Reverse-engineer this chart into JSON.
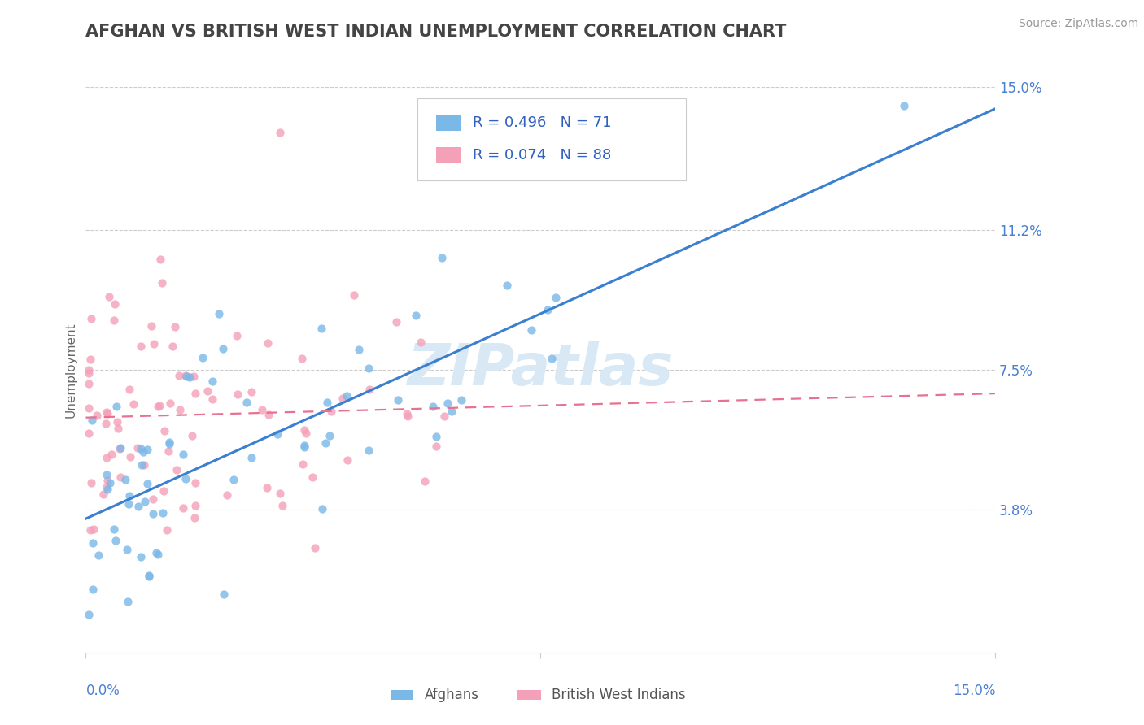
{
  "title": "AFGHAN VS BRITISH WEST INDIAN UNEMPLOYMENT CORRELATION CHART",
  "source": "Source: ZipAtlas.com",
  "xmin": 0.0,
  "xmax": 15.0,
  "ymin": 0.0,
  "ymax": 15.0,
  "afghan_R": 0.496,
  "afghan_N": 71,
  "bwi_R": 0.074,
  "bwi_N": 88,
  "afghan_color": "#7ab8e8",
  "bwi_color": "#f4a0b8",
  "afghan_line_color": "#3a7fd0",
  "bwi_line_color": "#e87090",
  "legend_text_color": "#3060c0",
  "title_color": "#444444",
  "source_color": "#999999",
  "grid_color": "#cccccc",
  "ytick_color": "#4a7fd4",
  "xtick_color": "#4a7fd4",
  "watermark_color": "#d8e8f5",
  "afghan_line_intercept": 3.5,
  "afghan_line_slope": 0.65,
  "bwi_line_intercept": 6.2,
  "bwi_line_slope": 0.12
}
